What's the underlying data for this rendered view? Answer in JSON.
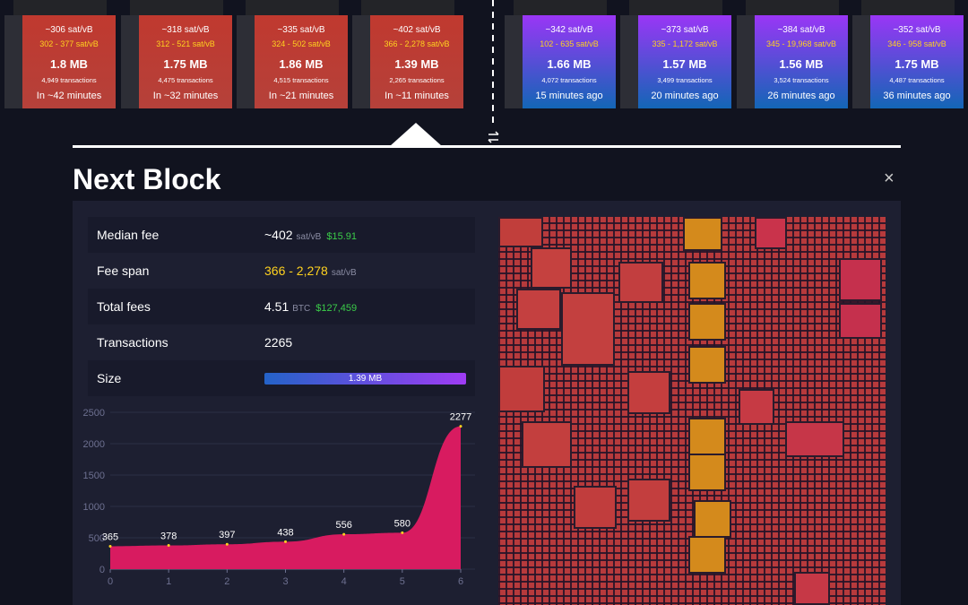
{
  "blocks": {
    "mempool": [
      {
        "fee": "~306 sat/vB",
        "range": "302 - 377 sat/vB",
        "size": "1.8 MB",
        "transactions": "4,949 transactions",
        "time": "In ~42 minutes"
      },
      {
        "fee": "~318 sat/vB",
        "range": "312 - 521 sat/vB",
        "size": "1.75 MB",
        "transactions": "4,475 transactions",
        "time": "In ~32 minutes"
      },
      {
        "fee": "~335 sat/vB",
        "range": "324 - 502 sat/vB",
        "size": "1.86 MB",
        "transactions": "4,515 transactions",
        "time": "In ~21 minutes"
      },
      {
        "fee": "~402 sat/vB",
        "range": "366 - 2,278 sat/vB",
        "size": "1.39 MB",
        "transactions": "2,265 transactions",
        "time": "In ~11 minutes"
      }
    ],
    "mined": [
      {
        "fee": "~342 sat/vB",
        "range": "102 - 635 sat/vB",
        "size": "1.66 MB",
        "transactions": "4,072 transactions",
        "time": "15 minutes ago"
      },
      {
        "fee": "~373 sat/vB",
        "range": "335 - 1,172 sat/vB",
        "size": "1.57 MB",
        "transactions": "3,499 transactions",
        "time": "20 minutes ago"
      },
      {
        "fee": "~384 sat/vB",
        "range": "345 - 19,968 sat/vB",
        "size": "1.56 MB",
        "transactions": "3,524 transactions",
        "time": "26 minutes ago"
      },
      {
        "fee": "~352 sat/vB",
        "range": "346 - 958 sat/vB",
        "size": "1.75 MB",
        "transactions": "4,487 transactions",
        "time": "36 minutes ago"
      }
    ]
  },
  "details": {
    "title": "Next Block",
    "close": "×",
    "rows": [
      {
        "label": "Median fee",
        "value": "~402",
        "unit": "sat/vB",
        "fiat": "$15.91"
      },
      {
        "label": "Fee span",
        "value": "366 - 2,278",
        "unit": "sat/vB"
      },
      {
        "label": "Total fees",
        "value": "4.51",
        "unit": "BTC",
        "fiat": "$127,459"
      },
      {
        "label": "Transactions",
        "value": "2265"
      },
      {
        "label": "Size",
        "value": "1.39 MB"
      }
    ]
  },
  "chart_data": {
    "type": "area",
    "x": [
      0,
      1,
      2,
      3,
      4,
      5,
      6
    ],
    "values": [
      365,
      378,
      397,
      438,
      556,
      580,
      2277
    ],
    "color": "#d81b60",
    "xlim": [
      0,
      6
    ],
    "xticks": [
      0,
      1,
      2,
      3,
      4,
      5,
      6
    ],
    "ylim": [
      0,
      2500
    ],
    "yticks": [
      0,
      500,
      1000,
      1500,
      2000,
      2500
    ],
    "grid": true
  }
}
